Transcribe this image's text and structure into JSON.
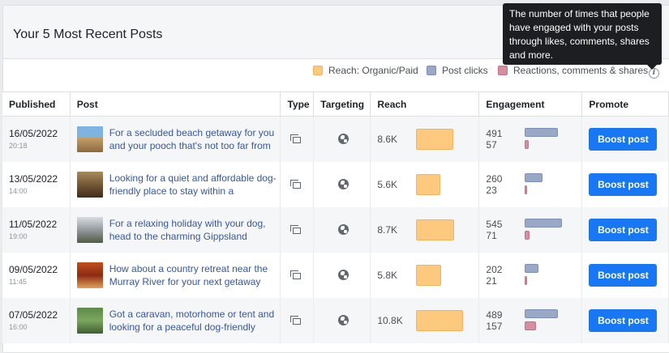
{
  "card": {
    "title": "Your 5 Most Recent Posts"
  },
  "tooltip": {
    "text": "The number of times that people have engaged with your posts through likes, comments, shares and more."
  },
  "legend": [
    {
      "label": "Reach: Organic/Paid",
      "color": "#fcc97f"
    },
    {
      "label": "Post clicks",
      "color": "#9aa8c8"
    },
    {
      "label": "Reactions, comments & shares",
      "color": "#d68ea2"
    }
  ],
  "table": {
    "headers": [
      "Published",
      "Post",
      "Type",
      "Targeting",
      "Reach",
      "Engagement",
      "Promote"
    ],
    "rows": [
      {
        "date": "16/05/2022",
        "time": "20:18",
        "post": "For a secluded beach getaway for you and your pooch that's not too far from",
        "reach": "8.6K",
        "reach_value": 8600,
        "clicks": "491",
        "clicks_value": 491,
        "reactions": "57",
        "reactions_value": 57,
        "button": "Boost post",
        "thumb": "beach-getaway-thumbnail"
      },
      {
        "date": "13/05/2022",
        "time": "14:00",
        "post": "Looking for a quiet and affordable dog-friendly place to stay within a",
        "reach": "5.6K",
        "reach_value": 5600,
        "clicks": "260",
        "clicks_value": 260,
        "reactions": "23",
        "reactions_value": 23,
        "button": "Boost post",
        "thumb": "quiet-stay-thumbnail"
      },
      {
        "date": "11/05/2022",
        "time": "19:00",
        "post": "For a relaxing holiday with your dog, head to the charming Gippsland",
        "reach": "8.7K",
        "reach_value": 8700,
        "clicks": "545",
        "clicks_value": 545,
        "reactions": "71",
        "reactions_value": 71,
        "button": "Boost post",
        "thumb": "gippsland-thumbnail"
      },
      {
        "date": "09/05/2022",
        "time": "11:45",
        "post": "How about a country retreat near the Murray River for your next getaway",
        "reach": "5.8K",
        "reach_value": 5800,
        "clicks": "202",
        "clicks_value": 202,
        "reactions": "21",
        "reactions_value": 21,
        "button": "Boost post",
        "thumb": "murray-river-thumbnail"
      },
      {
        "date": "07/05/2022",
        "time": "16:00",
        "post": "Got a caravan, motorhome or tent and looking for a peaceful dog-friendly",
        "reach": "10.8K",
        "reach_value": 10800,
        "clicks": "489",
        "clicks_value": 489,
        "reactions": "157",
        "reactions_value": 157,
        "button": "Boost post",
        "thumb": "caravan-thumbnail"
      }
    ]
  }
}
